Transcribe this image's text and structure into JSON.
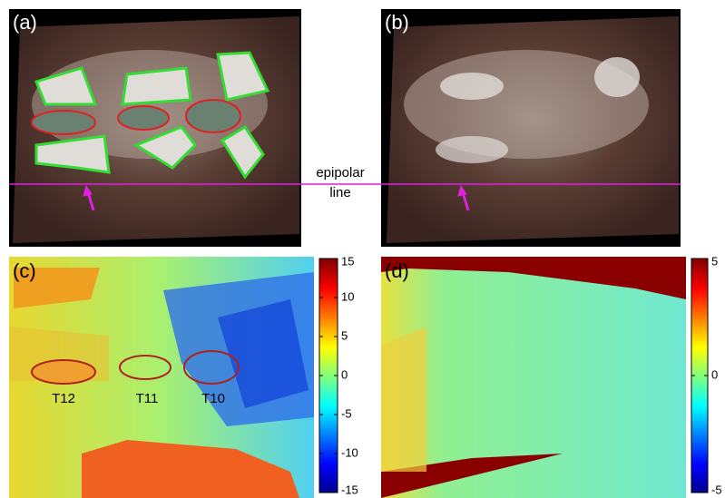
{
  "panels": [
    {
      "label": "(a)"
    },
    {
      "label": "(b)"
    },
    {
      "label": "(c)",
      "regions": [
        "T12",
        "T11",
        "T10"
      ],
      "colorbar": {
        "lim": [
          -15,
          15
        ],
        "ticks": [
          15,
          10,
          5,
          0,
          -5,
          -10,
          -15
        ]
      }
    },
    {
      "label": "(d)",
      "colorbar": {
        "lim": [
          -5,
          5
        ],
        "ticks": [
          5,
          0,
          -5
        ]
      }
    }
  ],
  "epipolar_line": [
    "epipolar",
    "line"
  ]
}
